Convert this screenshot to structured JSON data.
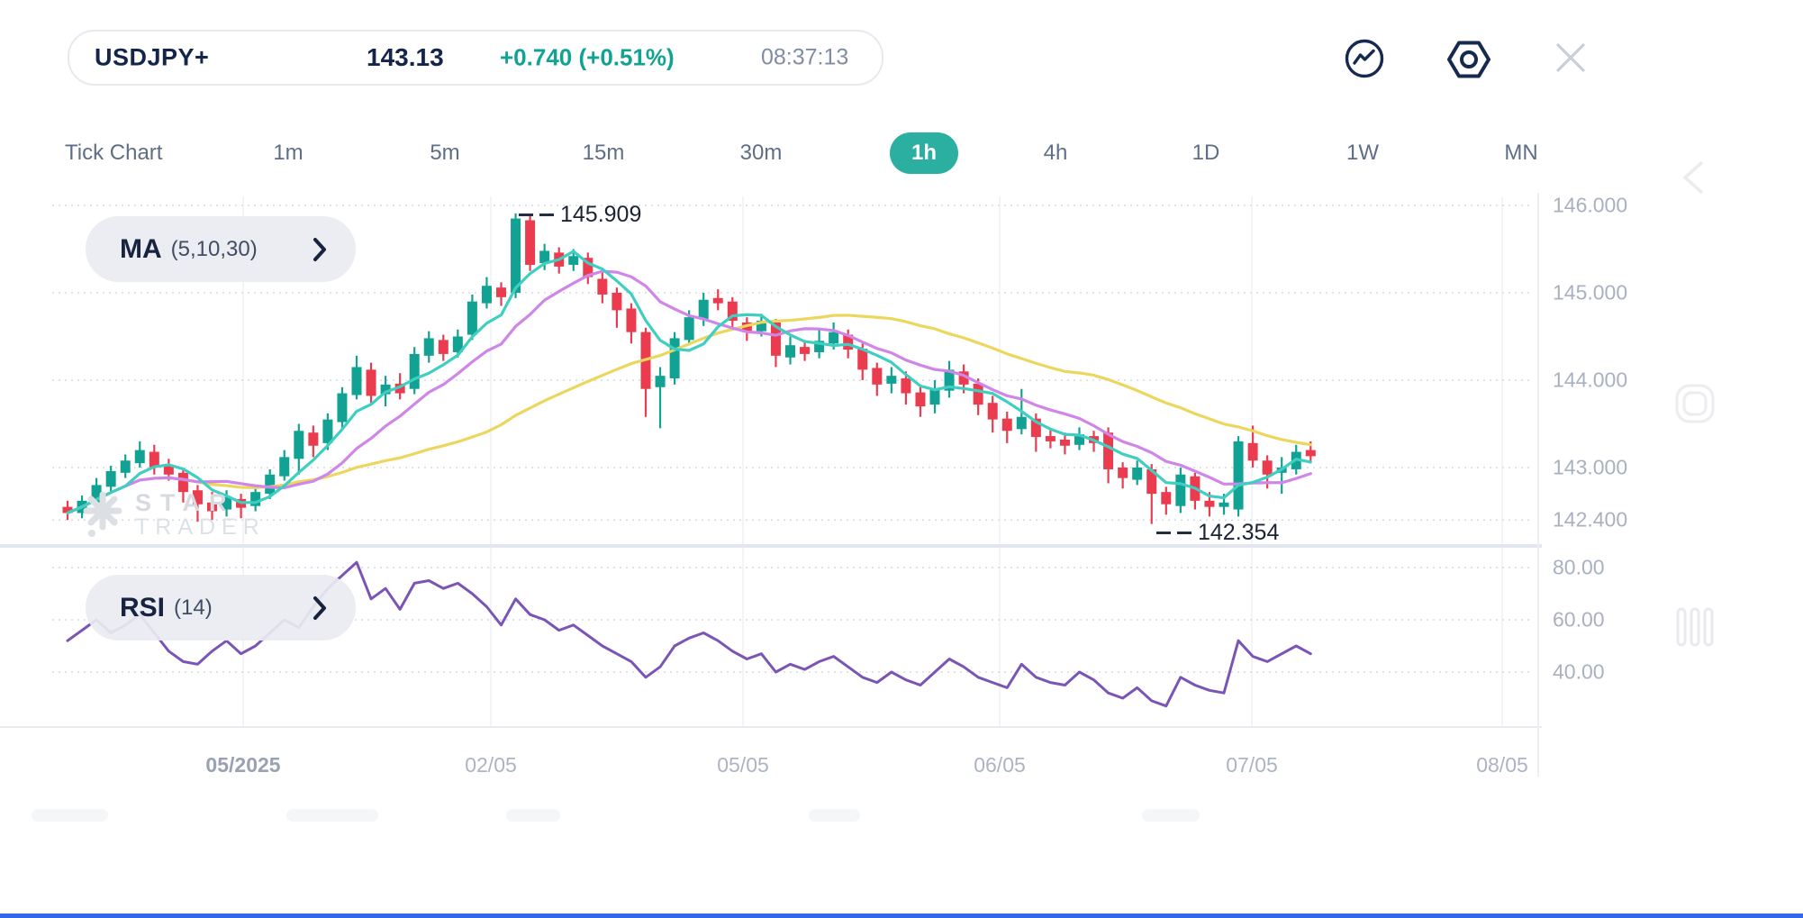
{
  "header": {
    "symbol": "USDJPY+",
    "price": "143.13",
    "change": "+0.740 (+0.51%)",
    "time": "08:37:13"
  },
  "toolbar": {
    "icons": [
      "chart-pulse",
      "settings-nut",
      "close"
    ]
  },
  "timeframes": {
    "items": [
      "Tick Chart",
      "1m",
      "5m",
      "15m",
      "30m",
      "1h",
      "4h",
      "1D",
      "1W",
      "MN"
    ],
    "selected": "1h"
  },
  "indicators": {
    "ma_name": "MA",
    "ma_params": "(5,10,30)",
    "rsi_name": "RSI",
    "rsi_params": "(14)"
  },
  "watermark": {
    "line1": "STAR",
    "line2": "TRADER"
  },
  "annotations": {
    "high": "145.909",
    "low": "142.354"
  },
  "price_axis_labels": [
    "146.000",
    "145.000",
    "144.000",
    "143.000",
    "142.400"
  ],
  "rsi_axis_labels": [
    "80.00",
    "60.00",
    "40.00"
  ],
  "x_axis_labels": [
    "05/2025",
    "02/05",
    "05/05",
    "06/05",
    "07/05",
    "08/05"
  ],
  "colors": {
    "up": "#12A294",
    "down": "#EB3B4E",
    "ma5": "#3FCFC2",
    "ma10": "#D086E8",
    "ma30": "#EBD75E",
    "rsi": "#7A55B5",
    "accent": "#2BAFA0",
    "navy": "#16294E",
    "grid_dot": "#D6DAE1",
    "grid_v": "#F0F2F5",
    "separator": "#E2E6EE",
    "axis_line": "#ECEEF2",
    "side_icon": "#ECECEF",
    "bottom_bar": "#3468E8"
  },
  "chart_data": {
    "type": "candlestick",
    "symbol": "USDJPY+",
    "timeframe": "1h",
    "marked_high": 145.909,
    "marked_low": 142.354,
    "ma_periods": [
      5,
      10,
      30
    ],
    "price_gridlines": [
      146.0,
      145.0,
      144.0,
      143.0,
      142.4
    ],
    "rsi_gridlines": [
      80,
      60,
      40
    ],
    "x_labels": [
      "05/2025",
      "02/05",
      "05/05",
      "06/05",
      "07/05",
      "08/05"
    ],
    "candles_ohlc": [
      [
        142.55,
        142.62,
        142.4,
        142.48
      ],
      [
        142.48,
        142.68,
        142.42,
        142.62
      ],
      [
        142.6,
        142.88,
        142.56,
        142.8
      ],
      [
        142.78,
        143.02,
        142.72,
        142.96
      ],
      [
        142.94,
        143.15,
        142.88,
        143.08
      ],
      [
        143.05,
        143.3,
        143.0,
        143.2
      ],
      [
        143.18,
        143.26,
        142.92,
        143.0
      ],
      [
        143.02,
        143.1,
        142.85,
        142.92
      ],
      [
        142.94,
        142.98,
        142.6,
        142.72
      ],
      [
        142.74,
        142.8,
        142.38,
        142.58
      ],
      [
        142.6,
        142.72,
        142.4,
        142.5
      ],
      [
        142.52,
        142.74,
        142.44,
        142.66
      ],
      [
        142.64,
        142.7,
        142.42,
        142.54
      ],
      [
        142.56,
        142.8,
        142.5,
        142.72
      ],
      [
        142.7,
        142.98,
        142.64,
        142.92
      ],
      [
        142.9,
        143.2,
        142.85,
        143.12
      ],
      [
        143.1,
        143.5,
        142.92,
        143.42
      ],
      [
        143.4,
        143.48,
        143.12,
        143.25
      ],
      [
        143.28,
        143.62,
        143.2,
        143.55
      ],
      [
        143.52,
        143.92,
        143.45,
        143.85
      ],
      [
        143.83,
        144.28,
        143.78,
        144.15
      ],
      [
        144.12,
        144.2,
        143.72,
        143.82
      ],
      [
        143.84,
        144.05,
        143.7,
        143.95
      ],
      [
        143.96,
        144.08,
        143.78,
        143.85
      ],
      [
        143.9,
        144.38,
        143.84,
        144.3
      ],
      [
        144.28,
        144.56,
        144.2,
        144.48
      ],
      [
        144.46,
        144.52,
        144.22,
        144.3
      ],
      [
        144.32,
        144.58,
        144.26,
        144.5
      ],
      [
        144.52,
        144.98,
        144.46,
        144.9
      ],
      [
        144.88,
        145.18,
        144.82,
        145.08
      ],
      [
        145.06,
        145.12,
        144.85,
        144.95
      ],
      [
        145.0,
        145.909,
        144.94,
        145.85
      ],
      [
        145.83,
        145.88,
        145.25,
        145.32
      ],
      [
        145.34,
        145.56,
        145.26,
        145.48
      ],
      [
        145.46,
        145.52,
        145.22,
        145.3
      ],
      [
        145.32,
        145.5,
        145.25,
        145.42
      ],
      [
        145.4,
        145.46,
        145.1,
        145.18
      ],
      [
        145.16,
        145.24,
        144.88,
        144.98
      ],
      [
        145.0,
        145.06,
        144.6,
        144.8
      ],
      [
        144.82,
        144.88,
        144.42,
        144.55
      ],
      [
        144.55,
        144.6,
        143.58,
        143.9
      ],
      [
        143.92,
        144.15,
        143.45,
        144.05
      ],
      [
        144.02,
        144.55,
        143.95,
        144.48
      ],
      [
        144.46,
        144.8,
        144.4,
        144.72
      ],
      [
        144.7,
        145.0,
        144.62,
        144.92
      ],
      [
        144.94,
        145.04,
        144.8,
        144.88
      ],
      [
        144.9,
        144.95,
        144.58,
        144.68
      ],
      [
        144.66,
        144.72,
        144.45,
        144.55
      ],
      [
        144.56,
        144.76,
        144.5,
        144.68
      ],
      [
        144.66,
        144.7,
        144.15,
        144.28
      ],
      [
        144.26,
        144.5,
        144.18,
        144.4
      ],
      [
        144.38,
        144.46,
        144.22,
        144.3
      ],
      [
        144.32,
        144.58,
        144.25,
        144.45
      ],
      [
        144.42,
        144.66,
        144.35,
        144.55
      ],
      [
        144.52,
        144.58,
        144.25,
        144.35
      ],
      [
        144.36,
        144.42,
        144.0,
        144.12
      ],
      [
        144.14,
        144.2,
        143.82,
        143.95
      ],
      [
        143.96,
        144.15,
        143.85,
        144.05
      ],
      [
        144.02,
        144.1,
        143.72,
        143.85
      ],
      [
        143.86,
        143.95,
        143.58,
        143.7
      ],
      [
        143.72,
        144.0,
        143.62,
        143.9
      ],
      [
        143.88,
        144.22,
        143.8,
        144.12
      ],
      [
        144.1,
        144.18,
        143.85,
        143.95
      ],
      [
        143.96,
        144.02,
        143.6,
        143.72
      ],
      [
        143.74,
        143.82,
        143.4,
        143.55
      ],
      [
        143.56,
        143.64,
        143.28,
        143.42
      ],
      [
        143.44,
        143.9,
        143.38,
        143.58
      ],
      [
        143.56,
        143.62,
        143.18,
        143.35
      ],
      [
        143.36,
        143.44,
        143.22,
        143.3
      ],
      [
        143.32,
        143.4,
        143.15,
        143.25
      ],
      [
        143.26,
        143.46,
        143.2,
        143.38
      ],
      [
        143.36,
        143.42,
        143.18,
        143.28
      ],
      [
        143.4,
        143.46,
        142.82,
        142.98
      ],
      [
        143.0,
        143.06,
        142.76,
        142.88
      ],
      [
        142.86,
        143.08,
        142.8,
        143.0
      ],
      [
        142.98,
        143.04,
        142.354,
        142.7
      ],
      [
        142.72,
        142.78,
        142.46,
        142.58
      ],
      [
        142.56,
        143.0,
        142.48,
        142.92
      ],
      [
        142.9,
        142.94,
        142.52,
        142.62
      ],
      [
        142.62,
        142.72,
        142.44,
        142.55
      ],
      [
        142.55,
        142.7,
        142.46,
        142.6
      ],
      [
        142.52,
        143.36,
        142.44,
        143.3
      ],
      [
        143.28,
        143.48,
        143.0,
        143.08
      ],
      [
        143.08,
        143.14,
        142.76,
        142.92
      ],
      [
        142.94,
        143.12,
        142.7,
        143.0
      ],
      [
        142.98,
        143.26,
        142.92,
        143.18
      ],
      [
        143.2,
        143.3,
        143.05,
        143.13
      ]
    ],
    "rsi_values": [
      52,
      56,
      60,
      55,
      58,
      62,
      55,
      48,
      44,
      43,
      48,
      52,
      47,
      50,
      55,
      60,
      57,
      65,
      72,
      77,
      82,
      68,
      72,
      64,
      74,
      75,
      72,
      74,
      70,
      65,
      58,
      68,
      62,
      60,
      56,
      58,
      54,
      50,
      47,
      44,
      38,
      42,
      50,
      53,
      55,
      52,
      48,
      45,
      47,
      40,
      43,
      41,
      44,
      46,
      42,
      38,
      36,
      40,
      37,
      35,
      40,
      45,
      42,
      38,
      36,
      34,
      43,
      38,
      36,
      35,
      40,
      37,
      32,
      30,
      34,
      29,
      27,
      38,
      35,
      33,
      32,
      52,
      46,
      44,
      47,
      50,
      47
    ]
  }
}
